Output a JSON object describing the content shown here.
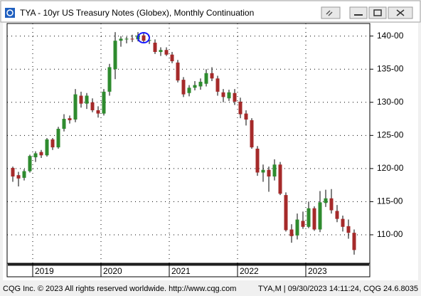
{
  "window_title": "TYA - 10yr US Treasury Notes (Globex), Monthly Continuation",
  "footer": {
    "left": "CQG Inc. © 2023 All rights reserved worldwide. http://www.cqg.com",
    "right": "TYA,M | 09/30/2023 14:11:24, CQG 24.6.8035"
  },
  "chart_data": {
    "type": "candlestick",
    "up_color": "#2e8b2e",
    "down_color": "#a52a2a",
    "grid": true,
    "categories": [
      null,
      null,
      null,
      null,
      "2019",
      null,
      null,
      null,
      null,
      null,
      null,
      null,
      null,
      null,
      null,
      null,
      "2020",
      null,
      null,
      null,
      null,
      null,
      null,
      null,
      null,
      null,
      null,
      null,
      "2021",
      null,
      null,
      null,
      null,
      null,
      null,
      null,
      null,
      null,
      null,
      null,
      "2022",
      null,
      null,
      null,
      null,
      null,
      null,
      null,
      null,
      null,
      null,
      null,
      "2023",
      null,
      null,
      null,
      null,
      null,
      null,
      null,
      null
    ],
    "open": [
      120.1,
      119.0,
      118.6,
      119.6,
      121.7,
      122.5,
      122.0,
      124.4,
      123.2,
      126.0,
      127.6,
      127.4,
      131.0,
      129.8,
      130.0,
      128.8,
      128.3,
      131.6,
      135.0,
      139.3,
      139.5,
      139.6,
      139.5,
      140.1,
      139.3,
      139.0,
      137.6,
      137.9,
      137.2,
      136.0,
      133.4,
      131.4,
      132.2,
      132.4,
      132.8,
      134.4,
      133.6,
      131.5,
      130.6,
      131.4,
      130.1,
      128.3,
      127.3,
      123.0,
      119.4,
      119.8,
      118.8,
      120.6,
      116.0,
      110.8,
      109.9,
      112.1,
      111.2,
      114.0,
      110.8,
      114.8,
      115.5,
      113.6,
      112.4,
      111.3,
      110.3
    ],
    "high": [
      120.3,
      119.5,
      119.9,
      122.1,
      122.6,
      122.8,
      124.6,
      124.6,
      126.3,
      128.2,
      128.0,
      132.0,
      131.6,
      131.4,
      130.6,
      129.4,
      132.0,
      135.8,
      140.6,
      140.0,
      139.9,
      140.2,
      140.6,
      140.4,
      139.8,
      139.5,
      138.3,
      138.3,
      137.6,
      136.4,
      133.8,
      132.6,
      133.2,
      133.6,
      135.0,
      135.3,
      134.0,
      132.0,
      131.9,
      132.0,
      130.7,
      128.8,
      127.6,
      123.4,
      120.6,
      120.3,
      121.4,
      121.0,
      116.4,
      111.6,
      113.2,
      113.5,
      115.0,
      114.3,
      116.6,
      116.8,
      116.9,
      114.5,
      112.9,
      112.3,
      110.8
    ],
    "low": [
      118.0,
      117.3,
      118.2,
      119.4,
      121.0,
      121.6,
      121.8,
      122.8,
      123.0,
      125.6,
      126.8,
      127.0,
      129.2,
      129.0,
      128.5,
      127.7,
      128.0,
      131.0,
      133.5,
      138.4,
      138.9,
      139.1,
      139.2,
      138.9,
      138.8,
      137.3,
      137.0,
      137.0,
      135.9,
      133.0,
      130.8,
      130.9,
      131.8,
      131.9,
      132.4,
      133.2,
      131.0,
      130.0,
      130.2,
      129.6,
      127.6,
      126.5,
      123.0,
      118.9,
      118.0,
      116.5,
      118.2,
      116.0,
      110.5,
      108.8,
      109.3,
      110.9,
      111.0,
      110.6,
      110.4,
      114.2,
      113.2,
      111.9,
      110.5,
      109.4,
      107.0
    ],
    "close": [
      118.8,
      118.5,
      119.6,
      121.9,
      122.3,
      122.0,
      124.4,
      123.2,
      126.0,
      127.5,
      127.3,
      131.2,
      129.8,
      131.0,
      128.8,
      128.3,
      131.6,
      135.3,
      139.3,
      139.6,
      139.6,
      139.5,
      140.1,
      139.3,
      139.4,
      137.6,
      137.9,
      137.2,
      136.2,
      133.3,
      131.2,
      132.2,
      132.6,
      133.1,
      134.4,
      133.6,
      131.6,
      130.8,
      131.5,
      130.1,
      128.2,
      127.4,
      123.2,
      119.4,
      119.8,
      118.8,
      120.6,
      116.2,
      110.7,
      109.8,
      112.3,
      111.2,
      114.0,
      110.8,
      114.9,
      115.5,
      113.7,
      112.4,
      111.2,
      110.3,
      107.7
    ],
    "ylim": [
      105.7,
      141.9
    ],
    "yticks": [
      {
        "value": 110,
        "label": "110-00"
      },
      {
        "value": 115,
        "label": "115-00"
      },
      {
        "value": 120,
        "label": "120-00"
      },
      {
        "value": 125,
        "label": "125-00"
      },
      {
        "value": 130,
        "label": "130-00"
      },
      {
        "value": 135,
        "label": "135-00"
      },
      {
        "value": 140,
        "label": "140-00"
      }
    ]
  }
}
